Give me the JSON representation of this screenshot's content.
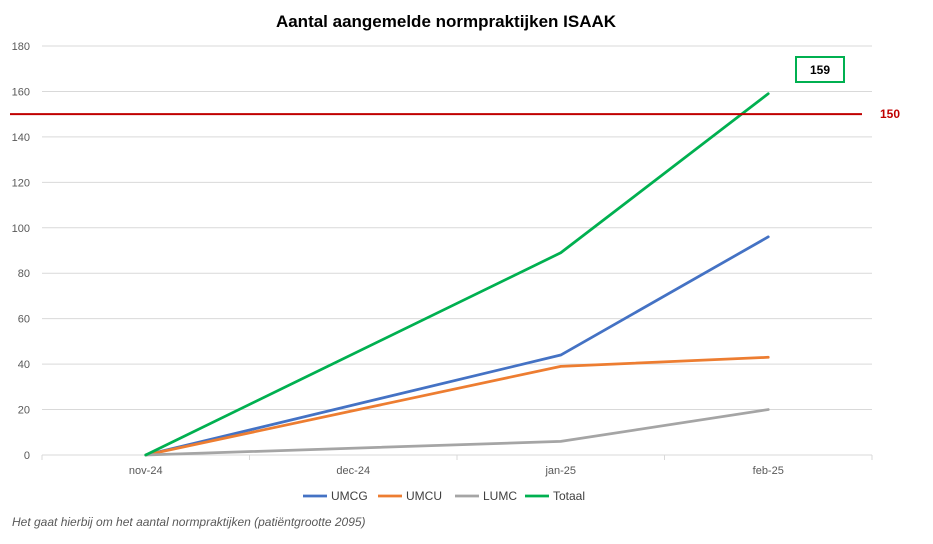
{
  "chart_data": {
    "type": "line",
    "title": "Aantal aangemelde normpraktijken ISAAK",
    "categories": [
      "nov-24",
      "dec-24",
      "jan-25",
      "feb-25"
    ],
    "ylim": [
      0,
      180
    ],
    "yticks": [
      0,
      20,
      40,
      60,
      80,
      100,
      120,
      140,
      160,
      180
    ],
    "grid": true,
    "legend_position": "bottom",
    "series": [
      {
        "name": "UMCG",
        "color": "#4472C4",
        "values": [
          0,
          null,
          44,
          96
        ]
      },
      {
        "name": "UMCU",
        "color": "#ED7D31",
        "values": [
          0,
          null,
          39,
          43
        ]
      },
      {
        "name": "LUMC",
        "color": "#A5A5A5",
        "values": [
          0,
          null,
          6,
          20
        ]
      },
      {
        "name": "Totaal",
        "color": "#00B050",
        "values": [
          0,
          null,
          89,
          159
        ]
      }
    ],
    "reference_line": {
      "value": 150,
      "label": "150",
      "color": "#C00000"
    },
    "callout": {
      "label": "159",
      "color": "#00B050"
    }
  },
  "footnote": "Het gaat hierbij om het aantal normpraktijken (patiëntgrootte 2095)"
}
